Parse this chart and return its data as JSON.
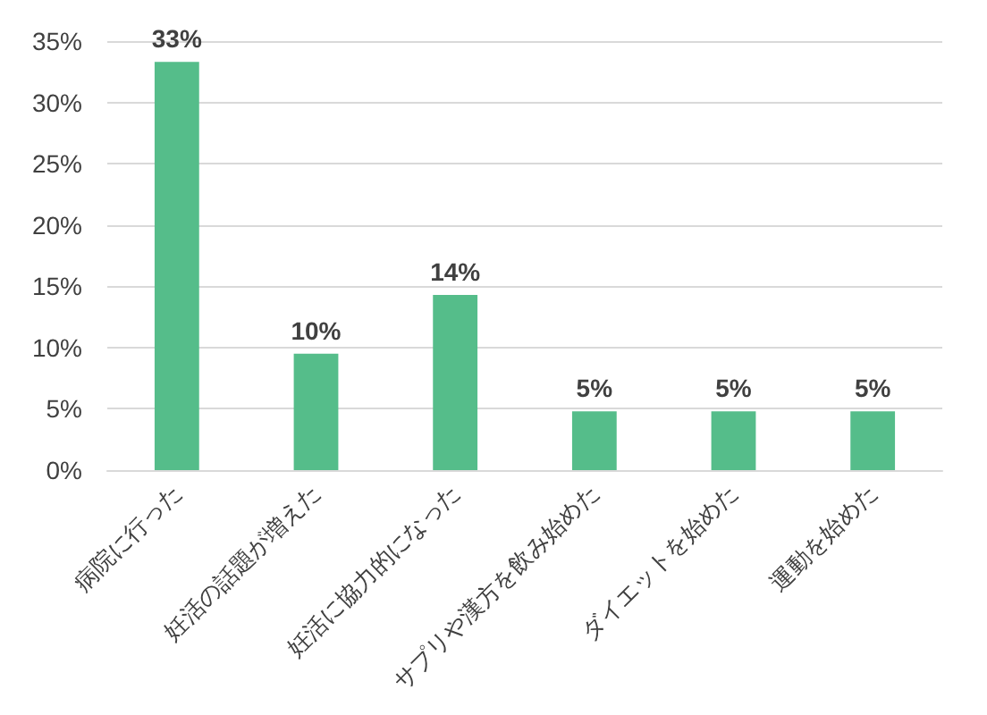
{
  "chart_data": {
    "type": "bar",
    "categories": [
      "病院に行った",
      "妊活の話題が増えた",
      "妊活に協力的になった",
      "サプリや漢方を飲み始めた",
      "ダイエットを始めた",
      "運動を始めた"
    ],
    "values": [
      33.3,
      9.5,
      14.3,
      4.8,
      4.8,
      4.8
    ],
    "value_labels": [
      "33%",
      "10%",
      "14%",
      "5%",
      "5%",
      "5%"
    ],
    "color": "#55bd8a",
    "ylim": [
      0,
      35
    ],
    "yticks": [
      {
        "value": 0,
        "label": "0%"
      },
      {
        "value": 5,
        "label": "5%"
      },
      {
        "value": 10,
        "label": "10%"
      },
      {
        "value": 15,
        "label": "15%"
      },
      {
        "value": 20,
        "label": "20%"
      },
      {
        "value": 25,
        "label": "25%"
      },
      {
        "value": 30,
        "label": "30%"
      },
      {
        "value": 35,
        "label": "35%"
      }
    ],
    "grid": "y"
  }
}
